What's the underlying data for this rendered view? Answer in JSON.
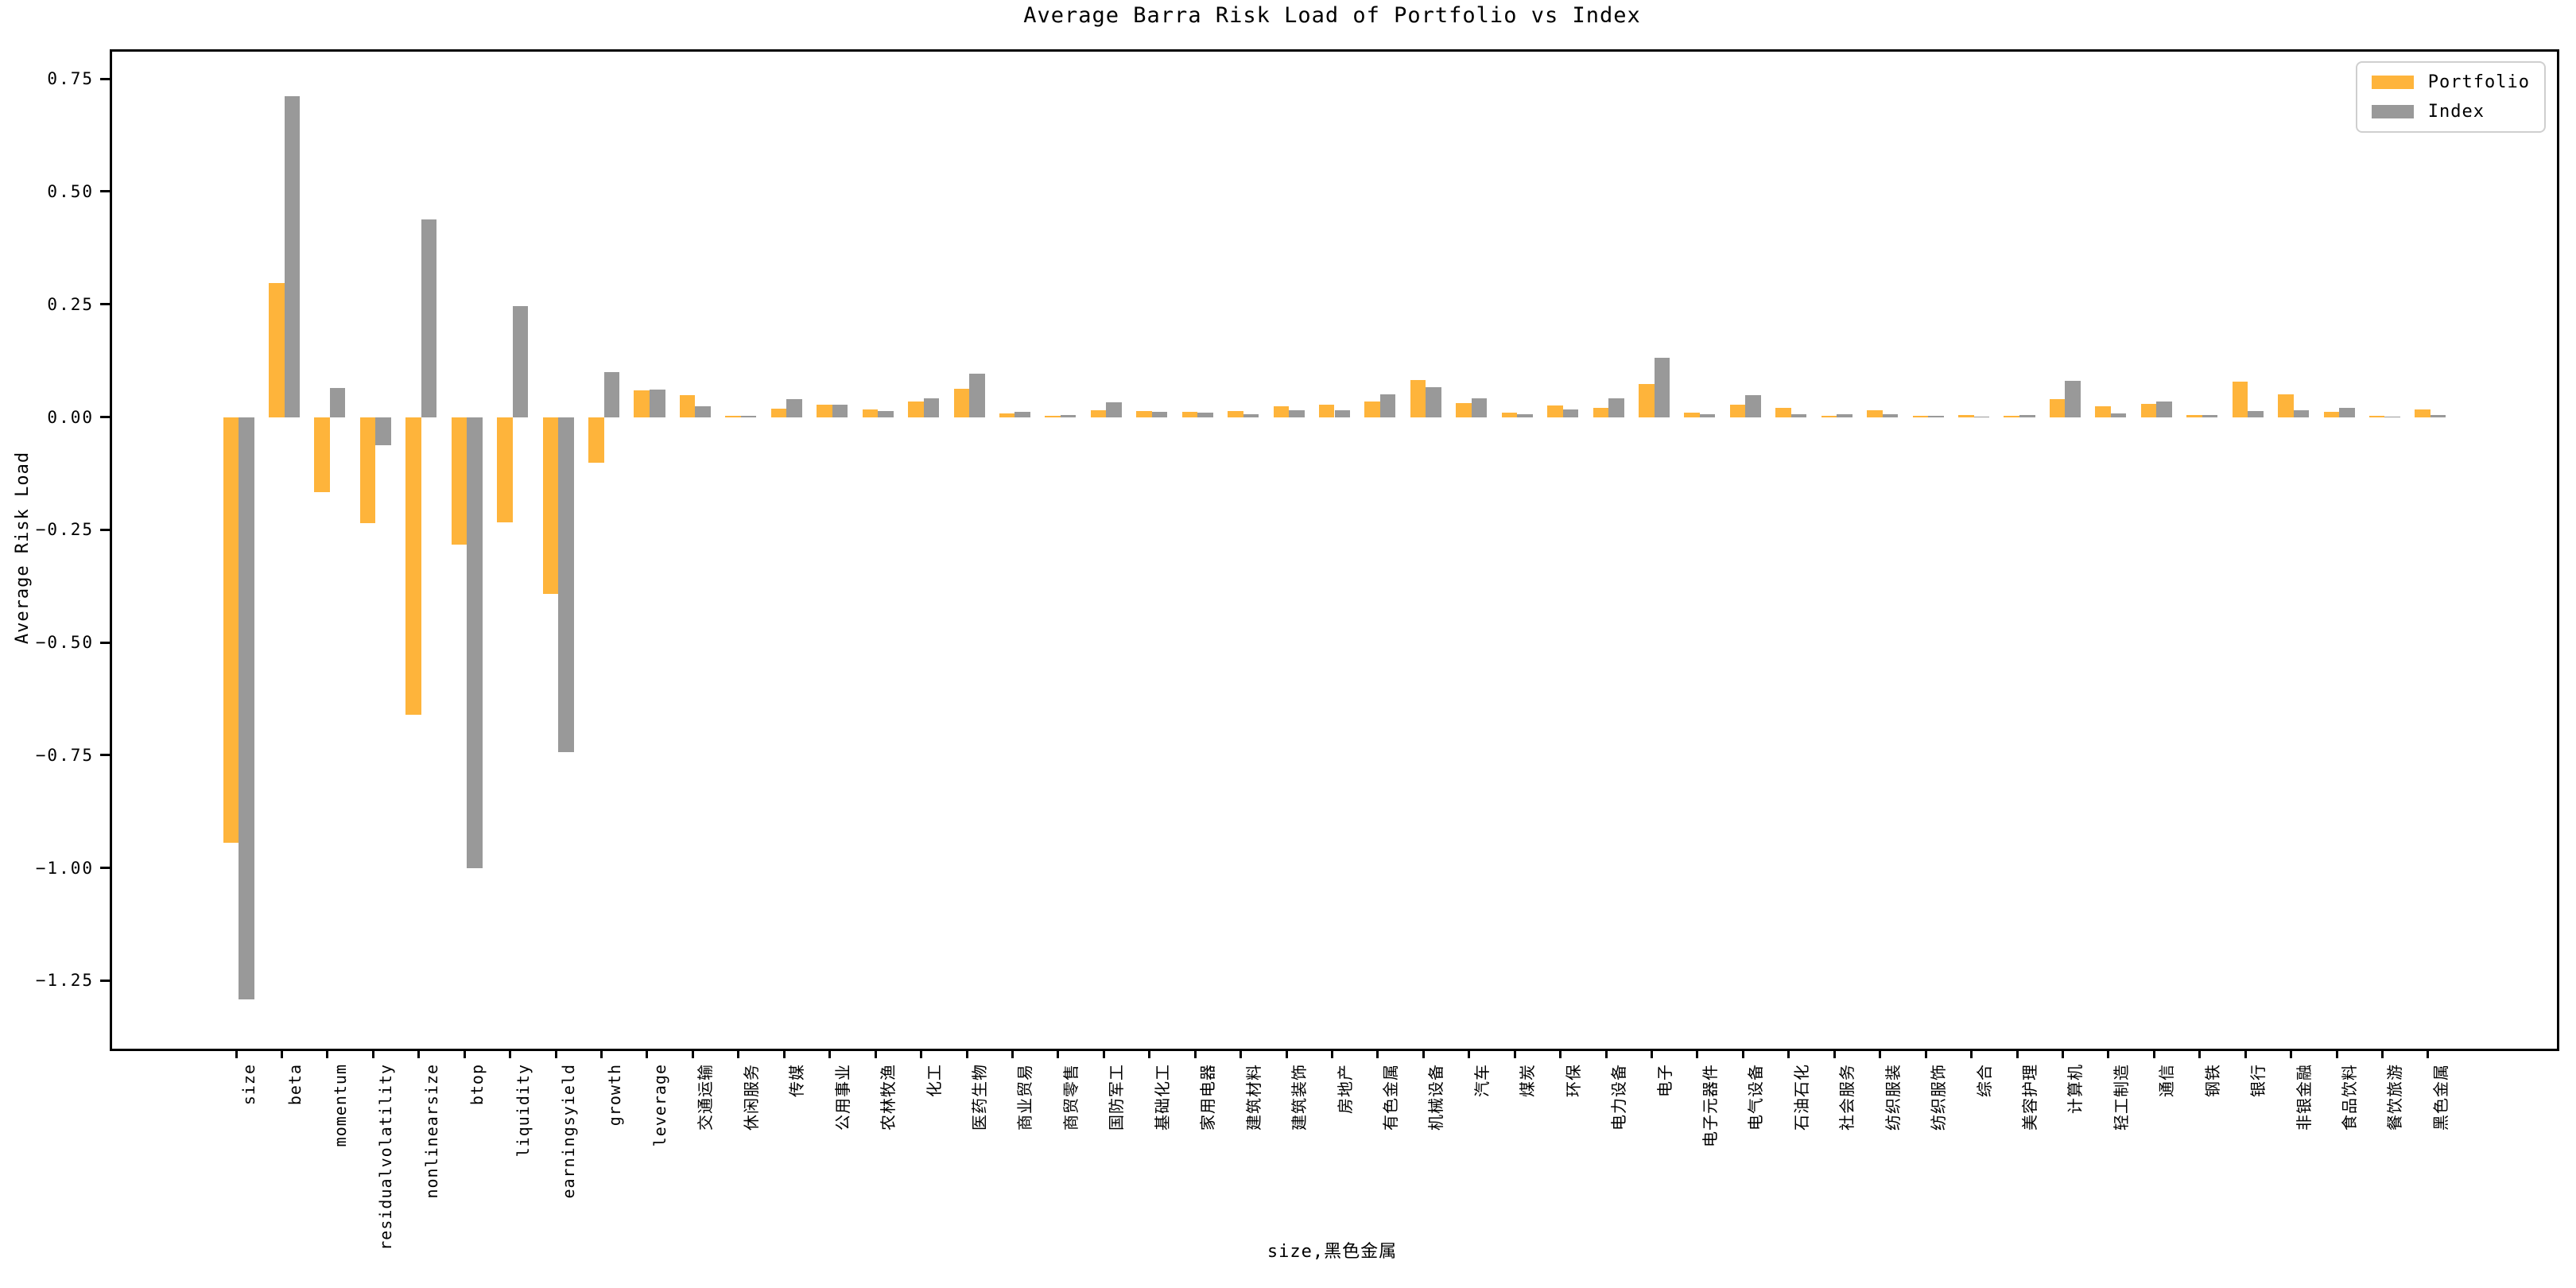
{
  "title": "Average Barra Risk Load of Portfolio vs Index",
  "chart_data": {
    "type": "bar",
    "title": "Average Barra Risk Load of Portfolio vs Index",
    "xlabel": "size,黑色金属",
    "ylabel": "Average Risk Load",
    "legend_position": "upper right",
    "grid": false,
    "xlim": [
      -2.77,
      50.77
    ],
    "ylim": [
      -1.3955,
      0.8155
    ],
    "yticks": [
      0.75,
      0.5,
      0.25,
      0.0,
      -0.25,
      -0.5,
      -0.75,
      -1.0,
      -1.25
    ],
    "bar_colors": {
      "portfolio": "#FEB43B",
      "index": "#999999"
    },
    "categories": [
      "size",
      "beta",
      "momentum",
      "residualvolatility",
      "nonlinearsize",
      "btop",
      "liquidity",
      "earningsyield",
      "growth",
      "leverage",
      "交通运输",
      "休闲服务",
      "传媒",
      "公用事业",
      "农林牧渔",
      "化工",
      "医药生物",
      "商业贸易",
      "商贸零售",
      "国防军工",
      "基础化工",
      "家用电器",
      "建筑材料",
      "建筑装饰",
      "房地产",
      "有色金属",
      "机械设备",
      "汽车",
      "煤炭",
      "环保",
      "电力设备",
      "电子",
      "电子元器件",
      "电气设备",
      "石油石化",
      "社会服务",
      "纺织服装",
      "纺织服饰",
      "综合",
      "美容护理",
      "计算机",
      "轻工制造",
      "通信",
      "钢铁",
      "银行",
      "非银金融",
      "食品饮料",
      "餐饮旅游",
      "黑色金属"
    ],
    "series": [
      {
        "name": "Portfolio",
        "color": "#FEB43B",
        "values": [
          -0.944,
          0.297,
          -0.166,
          -0.236,
          -0.661,
          -0.283,
          -0.233,
          -0.392,
          -0.102,
          0.059,
          0.048,
          0.003,
          0.018,
          0.027,
          0.017,
          0.035,
          0.062,
          0.008,
          0.003,
          0.015,
          0.013,
          0.012,
          0.014,
          0.023,
          0.027,
          0.035,
          0.082,
          0.031,
          0.009,
          0.025,
          0.02,
          0.073,
          0.01,
          0.028,
          0.02,
          0.003,
          0.015,
          0.002,
          0.004,
          0.003,
          0.039,
          0.023,
          0.03,
          0.005,
          0.079,
          0.05,
          0.012,
          0.002,
          0.016
        ]
      },
      {
        "name": "Index",
        "color": "#999999",
        "values": [
          -1.291,
          0.712,
          0.064,
          -0.062,
          0.439,
          -1.001,
          0.246,
          -0.743,
          0.099,
          0.061,
          0.024,
          0.002,
          0.04,
          0.027,
          0.013,
          0.042,
          0.097,
          0.011,
          0.005,
          0.032,
          0.011,
          0.009,
          0.007,
          0.015,
          0.015,
          0.051,
          0.066,
          0.042,
          0.006,
          0.017,
          0.041,
          0.132,
          0.007,
          0.049,
          0.006,
          0.007,
          0.007,
          0.003,
          0.001,
          0.005,
          0.081,
          0.008,
          0.034,
          0.005,
          0.014,
          0.015,
          0.02,
          0.001,
          0.005
        ]
      }
    ]
  },
  "legend": {
    "items": [
      {
        "label": "Portfolio",
        "color": "#FEB43B"
      },
      {
        "label": "Index",
        "color": "#999999"
      }
    ]
  }
}
